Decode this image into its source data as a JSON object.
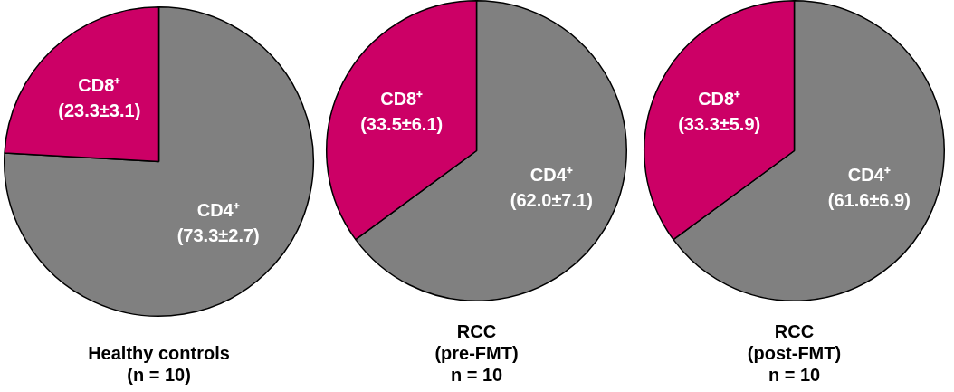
{
  "chart_data": [
    {
      "type": "pie",
      "title": "Healthy controls\n(n = 10)",
      "categories": [
        "CD4⁺",
        "CD8⁺"
      ],
      "values": [
        73.3,
        23.3
      ],
      "colors": [
        "#808080",
        "#cc0066"
      ],
      "value_labels": [
        "(73.3±2.7)",
        "(23.3±3.1)"
      ]
    },
    {
      "type": "pie",
      "title": "RCC\n(pre-FMT)\nn = 10",
      "categories": [
        "CD4⁺",
        "CD8⁺"
      ],
      "values": [
        62.0,
        33.5
      ],
      "colors": [
        "#808080",
        "#cc0066"
      ],
      "value_labels": [
        "(62.0±7.1)",
        "(33.5±6.1)"
      ]
    },
    {
      "type": "pie",
      "title": "RCC\n(post-FMT)\nn = 10",
      "categories": [
        "CD4⁺",
        "CD8⁺"
      ],
      "values": [
        61.6,
        33.3
      ],
      "colors": [
        "#808080",
        "#cc0066"
      ],
      "value_labels": [
        "(61.6±6.9)",
        "(33.3±5.9)"
      ]
    }
  ]
}
